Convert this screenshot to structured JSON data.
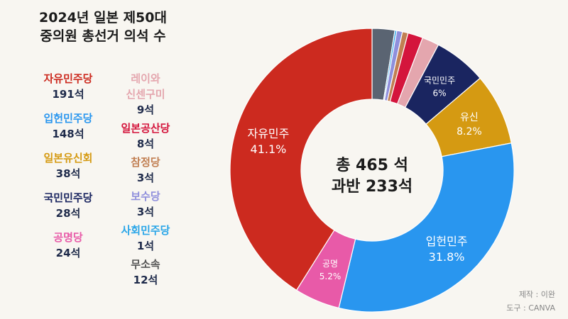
{
  "title_line1": "2024년 일본 제50대",
  "title_line2": "중의원 총선거 의석 수",
  "legend_left": [
    {
      "name": "자유민주당",
      "seats": "191석",
      "color": "#cc2a1f"
    },
    {
      "name": "입헌민주당",
      "seats": "148석",
      "color": "#2996ef"
    },
    {
      "name": "일본유신회",
      "seats": "38석",
      "color": "#d59a12"
    },
    {
      "name": "국민민주당",
      "seats": "28석",
      "color": "#1a2560"
    },
    {
      "name": "공명당",
      "seats": "24석",
      "color": "#e85aa8"
    }
  ],
  "legend_right": [
    {
      "name": "레이와",
      "name2": "신센구미",
      "seats": "9석",
      "color": "#e4a6ae"
    },
    {
      "name": "일본공산당",
      "seats": "8석",
      "color": "#d4153c"
    },
    {
      "name": "참정당",
      "seats": "3석",
      "color": "#c17f52"
    },
    {
      "name": "보수당",
      "seats": "3석",
      "color": "#8f8fdc"
    },
    {
      "name": "사회민주당",
      "seats": "1석",
      "color": "#2aa6e8"
    },
    {
      "name": "무소속",
      "seats": "12석",
      "color": "#555555"
    }
  ],
  "center_line1": "총 465 석",
  "center_line2": "과반 233석",
  "credit_maker": "제작 : 이완",
  "credit_tool": "도구 : CANVA",
  "chart_data": {
    "type": "pie",
    "title": "2024년 일본 제50대 중의원 총선거 의석 수",
    "total": 465,
    "start_direction": "top",
    "clockwise": true,
    "slices": [
      {
        "name": "무소속",
        "value": 12,
        "color": "#5a6472"
      },
      {
        "name": "사회민주당",
        "value": 1,
        "color": "#2aa6e8"
      },
      {
        "name": "보수당",
        "value": 3,
        "color": "#8f8fdc"
      },
      {
        "name": "참정당",
        "value": 3,
        "color": "#c17f52"
      },
      {
        "name": "일본공산당",
        "value": 8,
        "color": "#d4153c"
      },
      {
        "name": "레이와 신센구미",
        "value": 9,
        "color": "#e4a6ae"
      },
      {
        "name": "국민민주당",
        "value": 28,
        "color": "#1a2560",
        "label": "국민민주",
        "pct": "6%",
        "text_color": "#ffffff"
      },
      {
        "name": "일본유신회",
        "value": 38,
        "color": "#d59a12",
        "label": "유신",
        "pct": "8.2%",
        "text_color": "#ffffff"
      },
      {
        "name": "입헌민주당",
        "value": 148,
        "color": "#2996ef",
        "label": "입헌민주",
        "pct": "31.8%",
        "text_color": "#ffffff"
      },
      {
        "name": "공명당",
        "value": 24,
        "color": "#e85aa8",
        "label": "공명",
        "pct": "5.2%",
        "text_color": "#ffffff"
      },
      {
        "name": "자유민주당",
        "value": 191,
        "color": "#cc2a1f",
        "label": "자유민주",
        "pct": "41.1%",
        "text_color": "#ffffff"
      }
    ]
  }
}
